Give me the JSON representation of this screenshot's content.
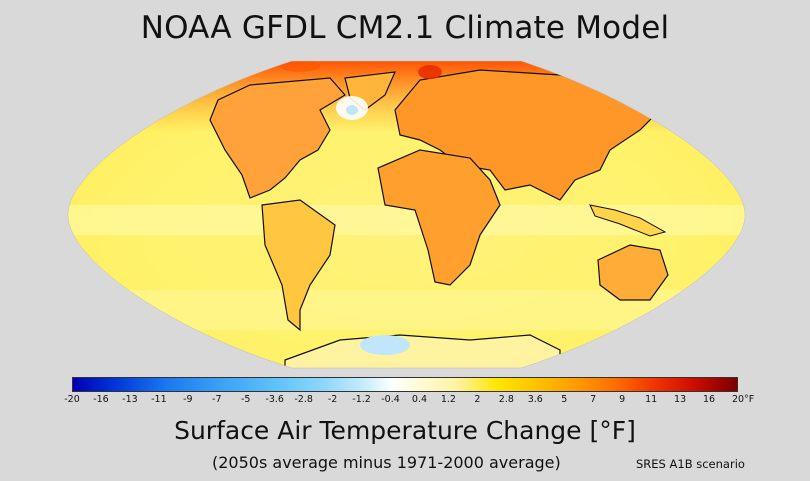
{
  "title": "NOAA GFDL CM2.1 Climate Model",
  "colorbar": {
    "ticks": [
      "-20",
      "-16",
      "-13",
      "-11",
      "-9",
      "-7",
      "-5",
      "-3.6",
      "-2.8",
      "-2",
      "-1.2",
      "-0.4",
      "0.4",
      "1.2",
      "2",
      "2.8",
      "3.6",
      "5",
      "7",
      "9",
      "11",
      "13",
      "16",
      "20"
    ],
    "unit": "°F",
    "colors": [
      "#0000b4",
      "#1a78f0",
      "#5cc0fa",
      "#ffffff",
      "#ffe600",
      "#ff9a00",
      "#f03000",
      "#7a0000"
    ]
  },
  "subtitle": "Surface Air Temperature Change [°F]",
  "note": "(2050s average minus 1971-2000 average)",
  "scenario": "SRES A1B scenario"
}
